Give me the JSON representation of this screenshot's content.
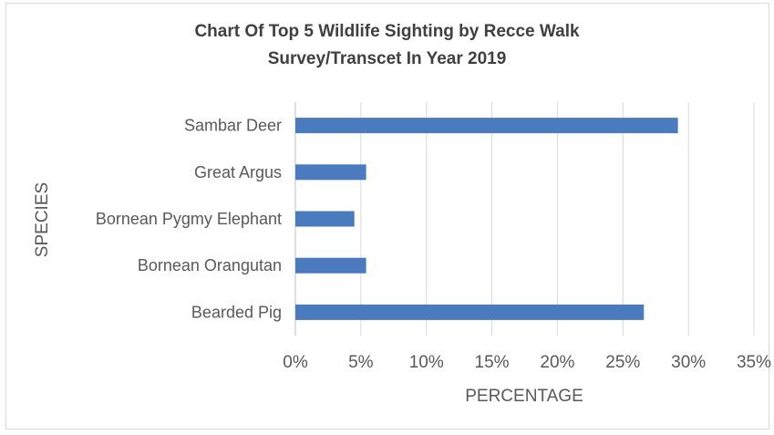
{
  "chart_data": {
    "type": "bar",
    "orientation": "horizontal",
    "title_lines": [
      "Chart Of Top 5 Wildlife Sighting by Recce Walk",
      "Survey/Transcet In Year 2019"
    ],
    "xlabel": "PERCENTAGE",
    "ylabel": "SPECIES",
    "categories": [
      "Sambar Deer",
      "Great Argus",
      "Bornean Pygmy Elephant",
      "Bornean Orangutan",
      "Bearded Pig"
    ],
    "values": [
      29.2,
      5.4,
      4.5,
      5.4,
      26.6
    ],
    "xlim": [
      0,
      35
    ],
    "xticks": [
      "0%",
      "5%",
      "10%",
      "15%",
      "20%",
      "25%",
      "30%",
      "35%"
    ],
    "grid": "vertical",
    "legend": "none",
    "bar_color": "#4a7bbf"
  }
}
